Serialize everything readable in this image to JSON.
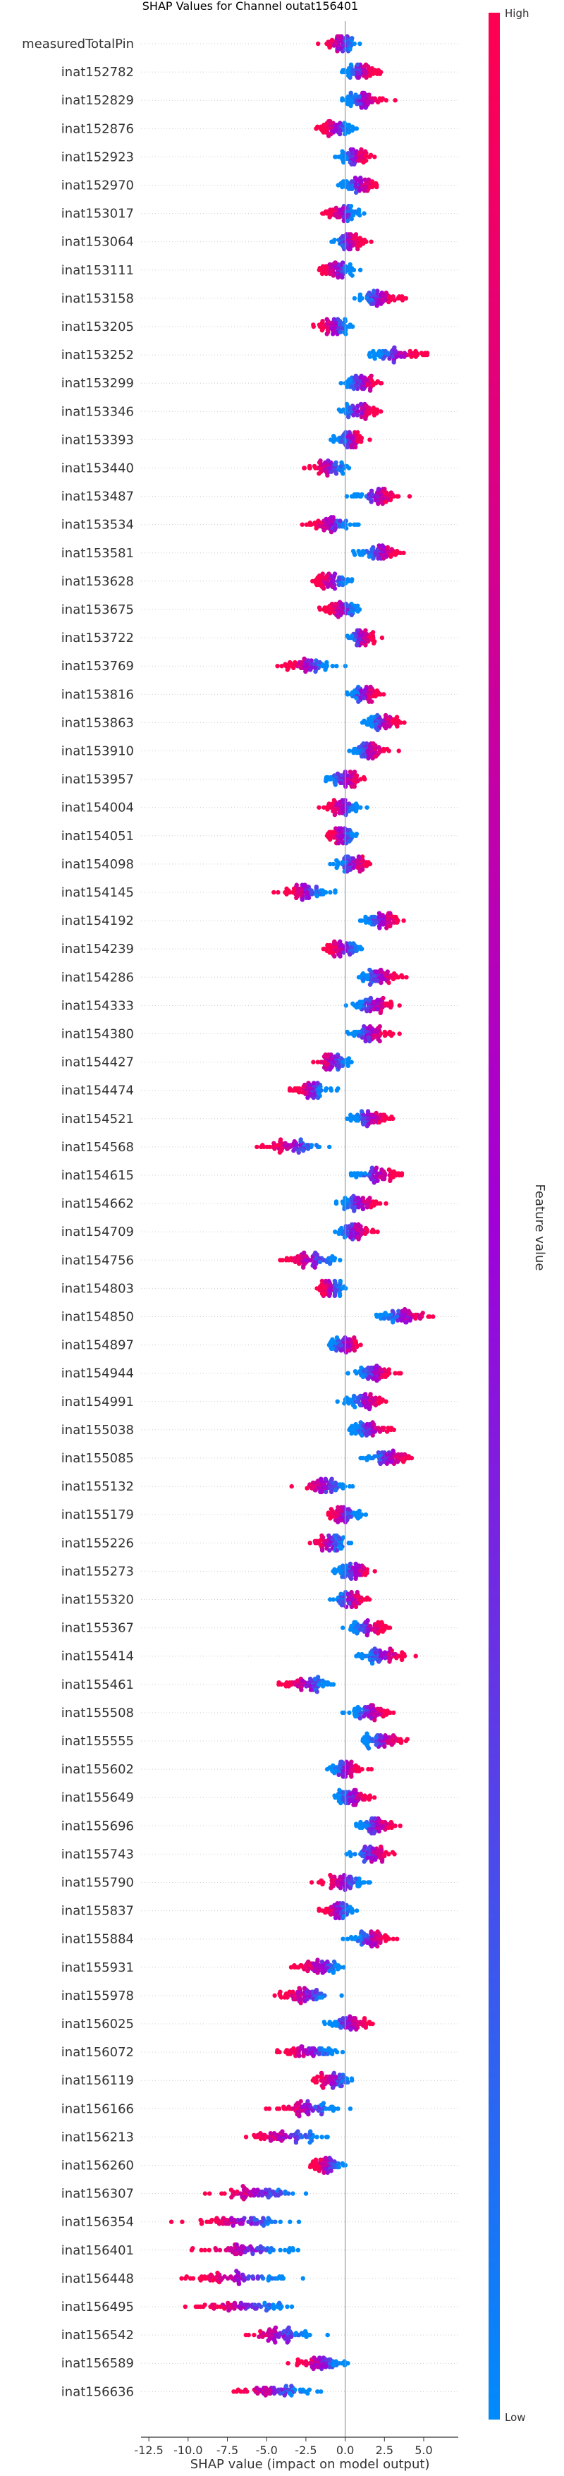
{
  "chart_data": {
    "type": "scatter",
    "subtype": "shap-beeswarm",
    "title": "SHAP Values for Channel outat156401",
    "xlabel": "SHAP value (impact on model output)",
    "xlim": [
      -13.0,
      7.2
    ],
    "xticks": [
      "-12.5",
      "-10.0",
      "-7.5",
      "-5.0",
      "-2.5",
      "0.0",
      "2.5",
      "5.0"
    ],
    "xtick_values": [
      -12.5,
      -10.0,
      -7.5,
      -5.0,
      -2.5,
      0.0,
      2.5,
      5.0
    ],
    "colorbar": {
      "label": "Feature value",
      "high": "High",
      "low": "Low",
      "color_low": "#008bfb",
      "color_high": "#ff0051"
    },
    "grid": false,
    "features": [
      {
        "name": "measuredTotalPin",
        "center": -0.3,
        "spread": 1.2
      },
      {
        "name": "inat152782",
        "center": 1.0,
        "spread": 1.3
      },
      {
        "name": "inat152829",
        "center": 1.2,
        "spread": 1.5
      },
      {
        "name": "inat152876",
        "center": -0.6,
        "spread": 1.2
      },
      {
        "name": "inat152923",
        "center": 0.6,
        "spread": 1.1
      },
      {
        "name": "inat152970",
        "center": 0.9,
        "spread": 1.3
      },
      {
        "name": "inat153017",
        "center": -0.2,
        "spread": 1.3
      },
      {
        "name": "inat153064",
        "center": 0.2,
        "spread": 1.2
      },
      {
        "name": "inat153111",
        "center": -0.5,
        "spread": 1.3
      },
      {
        "name": "inat153158",
        "center": 2.2,
        "spread": 1.6
      },
      {
        "name": "inat153205",
        "center": -0.7,
        "spread": 1.3
      },
      {
        "name": "inat153252",
        "center": 3.3,
        "spread": 1.9
      },
      {
        "name": "inat153299",
        "center": 1.1,
        "spread": 1.3
      },
      {
        "name": "inat153346",
        "center": 0.9,
        "spread": 1.4
      },
      {
        "name": "inat153393",
        "center": 0.3,
        "spread": 1.1
      },
      {
        "name": "inat153440",
        "center": -1.0,
        "spread": 1.4
      },
      {
        "name": "inat153487",
        "center": 2.0,
        "spread": 1.6
      },
      {
        "name": "inat153534",
        "center": -0.9,
        "spread": 1.6
      },
      {
        "name": "inat153581",
        "center": 2.2,
        "spread": 1.6
      },
      {
        "name": "inat153628",
        "center": -0.8,
        "spread": 1.3
      },
      {
        "name": "inat153675",
        "center": -0.2,
        "spread": 1.3
      },
      {
        "name": "inat153722",
        "center": 1.0,
        "spread": 1.1
      },
      {
        "name": "inat153769",
        "center": -2.4,
        "spread": 1.8
      },
      {
        "name": "inat153816",
        "center": 1.2,
        "spread": 1.2
      },
      {
        "name": "inat153863",
        "center": 2.4,
        "spread": 1.3
      },
      {
        "name": "inat153910",
        "center": 1.5,
        "spread": 1.5
      },
      {
        "name": "inat153957",
        "center": 0.0,
        "spread": 1.4
      },
      {
        "name": "inat154004",
        "center": -0.2,
        "spread": 1.3
      },
      {
        "name": "inat154051",
        "center": -0.2,
        "spread": 1.1
      },
      {
        "name": "inat154098",
        "center": 0.5,
        "spread": 1.3
      },
      {
        "name": "inat154145",
        "center": -2.5,
        "spread": 1.7
      },
      {
        "name": "inat154192",
        "center": 2.3,
        "spread": 1.5
      },
      {
        "name": "inat154239",
        "center": -0.1,
        "spread": 1.3
      },
      {
        "name": "inat154286",
        "center": 2.2,
        "spread": 1.6
      },
      {
        "name": "inat154333",
        "center": 1.8,
        "spread": 1.7
      },
      {
        "name": "inat154380",
        "center": 1.6,
        "spread": 1.5
      },
      {
        "name": "inat154427",
        "center": -0.8,
        "spread": 1.3
      },
      {
        "name": "inat154474",
        "center": -2.2,
        "spread": 1.3
      },
      {
        "name": "inat154521",
        "center": 1.6,
        "spread": 1.5
      },
      {
        "name": "inat154568",
        "center": -3.3,
        "spread": 2.3
      },
      {
        "name": "inat154615",
        "center": 2.0,
        "spread": 1.7
      },
      {
        "name": "inat154662",
        "center": 0.9,
        "spread": 1.5
      },
      {
        "name": "inat154709",
        "center": 0.6,
        "spread": 1.4
      },
      {
        "name": "inat154756",
        "center": -2.2,
        "spread": 2.0
      },
      {
        "name": "inat154803",
        "center": -0.9,
        "spread": 1.0
      },
      {
        "name": "inat154850",
        "center": 3.8,
        "spread": 2.1
      },
      {
        "name": "inat154897",
        "center": 0.0,
        "spread": 1.3
      },
      {
        "name": "inat154944",
        "center": 1.9,
        "spread": 1.5
      },
      {
        "name": "inat154991",
        "center": 1.2,
        "spread": 1.5
      },
      {
        "name": "inat155038",
        "center": 1.6,
        "spread": 1.5
      },
      {
        "name": "inat155085",
        "center": 2.8,
        "spread": 1.8
      },
      {
        "name": "inat155132",
        "center": -1.4,
        "spread": 1.7
      },
      {
        "name": "inat155179",
        "center": -0.1,
        "spread": 1.2
      },
      {
        "name": "inat155226",
        "center": -1.0,
        "spread": 1.4
      },
      {
        "name": "inat155273",
        "center": 0.6,
        "spread": 1.4
      },
      {
        "name": "inat155320",
        "center": 0.3,
        "spread": 1.4
      },
      {
        "name": "inat155367",
        "center": 1.5,
        "spread": 1.4
      },
      {
        "name": "inat155414",
        "center": 2.4,
        "spread": 1.7
      },
      {
        "name": "inat155461",
        "center": -2.4,
        "spread": 1.8
      },
      {
        "name": "inat155508",
        "center": 1.6,
        "spread": 1.5
      },
      {
        "name": "inat155555",
        "center": 2.4,
        "spread": 1.6
      },
      {
        "name": "inat155602",
        "center": 0.0,
        "spread": 1.3
      },
      {
        "name": "inat155649",
        "center": 0.5,
        "spread": 1.4
      },
      {
        "name": "inat155696",
        "center": 2.0,
        "spread": 1.5
      },
      {
        "name": "inat155743",
        "center": 1.7,
        "spread": 1.6
      },
      {
        "name": "inat155790",
        "center": -0.1,
        "spread": 1.5
      },
      {
        "name": "inat155837",
        "center": -0.5,
        "spread": 1.2
      },
      {
        "name": "inat155884",
        "center": 1.6,
        "spread": 1.4
      },
      {
        "name": "inat155931",
        "center": -1.6,
        "spread": 1.7
      },
      {
        "name": "inat155978",
        "center": -2.5,
        "spread": 2.0
      },
      {
        "name": "inat156025",
        "center": 0.2,
        "spread": 1.6
      },
      {
        "name": "inat156072",
        "center": -2.3,
        "spread": 2.1
      },
      {
        "name": "inat156119",
        "center": -0.8,
        "spread": 1.6
      },
      {
        "name": "inat156166",
        "center": -2.4,
        "spread": 2.4
      },
      {
        "name": "inat156213",
        "center": -3.8,
        "spread": 2.8
      },
      {
        "name": "inat156260",
        "center": -1.1,
        "spread": 1.3
      },
      {
        "name": "inat156307",
        "center": -5.5,
        "spread": 3.2
      },
      {
        "name": "inat156354",
        "center": -6.6,
        "spread": 3.6
      },
      {
        "name": "inat156401",
        "center": -6.2,
        "spread": 3.6
      },
      {
        "name": "inat156448",
        "center": -6.6,
        "spread": 3.6
      },
      {
        "name": "inat156495",
        "center": -6.4,
        "spread": 3.5
      },
      {
        "name": "inat156542",
        "center": -4.3,
        "spread": 2.6
      },
      {
        "name": "inat156589",
        "center": -1.6,
        "spread": 1.8
      },
      {
        "name": "inat156636",
        "center": -4.6,
        "spread": 2.9
      }
    ]
  }
}
